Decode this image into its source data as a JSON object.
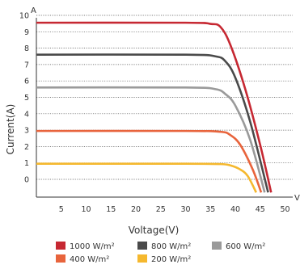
{
  "chart_data": {
    "type": "line",
    "xlabel": "Voltage(V)",
    "ylabel": "Current(A)",
    "y_unit_label": "A",
    "x_unit_label": "V",
    "x_ticks": [
      5,
      10,
      15,
      20,
      25,
      30,
      35,
      40,
      45,
      50
    ],
    "y_ticks": [
      0,
      1,
      2,
      3,
      4,
      5,
      6,
      7,
      8,
      9,
      10
    ],
    "xlim": [
      0,
      52
    ],
    "ylim": [
      -1,
      10.6
    ],
    "grid": "horizontal dotted",
    "legend_position": "bottom",
    "series": [
      {
        "name": "1000 W/m²",
        "color": "#c62832",
        "isc": 9.55,
        "knee": 36.0,
        "voc": 47.2,
        "points": [
          [
            0,
            9.55
          ],
          [
            30,
            9.55
          ],
          [
            35,
            9.48
          ],
          [
            37,
            9.3
          ],
          [
            39,
            8.2
          ],
          [
            42,
            5.5
          ],
          [
            45,
            2.1
          ],
          [
            47.2,
            -0.8
          ]
        ]
      },
      {
        "name": "800 W/m²",
        "color": "#4a4a4a",
        "isc": 7.6,
        "knee": 36.0,
        "voc": 46.6,
        "points": [
          [
            0,
            7.6
          ],
          [
            30,
            7.6
          ],
          [
            36,
            7.5
          ],
          [
            38,
            7.2
          ],
          [
            40,
            6.2
          ],
          [
            43,
            3.5
          ],
          [
            46.6,
            -0.8
          ]
        ]
      },
      {
        "name": "600 W/m²",
        "color": "#9a9a9a",
        "isc": 5.6,
        "knee": 36.5,
        "voc": 45.9,
        "points": [
          [
            0,
            5.6
          ],
          [
            30,
            5.6
          ],
          [
            36,
            5.5
          ],
          [
            38,
            5.2
          ],
          [
            40,
            4.5
          ],
          [
            43,
            2.4
          ],
          [
            45.9,
            -0.8
          ]
        ]
      },
      {
        "name": "400 W/m²",
        "color": "#e8643c",
        "isc": 2.95,
        "knee": 37.0,
        "voc": 45.2,
        "points": [
          [
            0,
            2.95
          ],
          [
            30,
            2.95
          ],
          [
            37,
            2.9
          ],
          [
            39,
            2.7
          ],
          [
            41,
            2.1
          ],
          [
            43.5,
            0.6
          ],
          [
            45.2,
            -0.8
          ]
        ]
      },
      {
        "name": "200 W/m²",
        "color": "#f5b82e",
        "isc": 0.95,
        "knee": 37.5,
        "voc": 44.2,
        "points": [
          [
            0,
            0.95
          ],
          [
            30,
            0.95
          ],
          [
            37,
            0.93
          ],
          [
            39,
            0.85
          ],
          [
            41,
            0.6
          ],
          [
            42.5,
            0.2
          ],
          [
            44.2,
            -0.8
          ]
        ]
      }
    ]
  }
}
